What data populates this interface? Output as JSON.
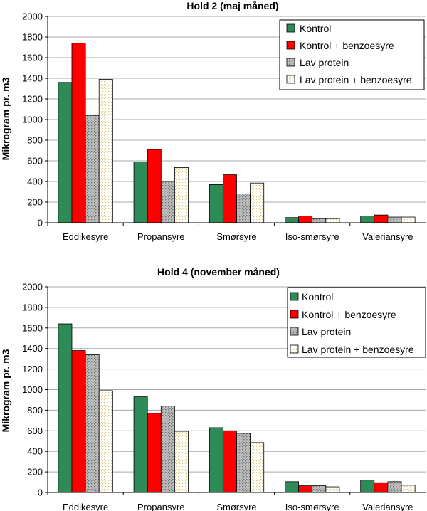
{
  "chart_data": [
    {
      "type": "bar",
      "title": "Hold 2 (maj måned)",
      "ylabel": "Mikrogram pr. m3",
      "xlabel": "",
      "ylim": [
        0,
        2000
      ],
      "yticks": [
        0,
        200,
        400,
        600,
        800,
        1000,
        1200,
        1400,
        1600,
        1800,
        2000
      ],
      "grid": "horizontal",
      "legend": "top-right",
      "categories": [
        "Eddikesyre",
        "Propansyre",
        "Smørsyre",
        "Iso-smørsyre",
        "Valeriansyre"
      ],
      "series": [
        {
          "name": "Kontrol",
          "color": "#2e8b57",
          "pattern": "solid",
          "values": [
            1360,
            590,
            370,
            50,
            65
          ]
        },
        {
          "name": "Kontrol + benzoesyre",
          "color": "#ff0000",
          "pattern": "solid",
          "values": [
            1740,
            710,
            465,
            65,
            75
          ]
        },
        {
          "name": "Lav protein",
          "color": "#c0c0c0",
          "pattern": "dots-dark",
          "values": [
            1040,
            400,
            280,
            40,
            55
          ]
        },
        {
          "name": "Lav protein + benzoesyre",
          "color": "#ffffff",
          "pattern": "dots-yellow",
          "values": [
            1390,
            535,
            385,
            40,
            55
          ]
        }
      ]
    },
    {
      "type": "bar",
      "title": "Hold 4 (november måned)",
      "ylabel": "Mikrogram pr. m3",
      "xlabel": "",
      "ylim": [
        0,
        2000
      ],
      "yticks": [
        0,
        200,
        400,
        600,
        800,
        1000,
        1200,
        1400,
        1600,
        1800,
        2000
      ],
      "grid": "horizontal",
      "legend": "top-right",
      "categories": [
        "Eddikesyre",
        "Propansyre",
        "Smørsyre",
        "Iso-smørsyre",
        "Valeriansyre"
      ],
      "series": [
        {
          "name": "Kontrol",
          "color": "#2e8b57",
          "pattern": "solid",
          "values": [
            1640,
            930,
            630,
            105,
            120
          ]
        },
        {
          "name": "Kontrol + benzoesyre",
          "color": "#ff0000",
          "pattern": "solid",
          "values": [
            1380,
            770,
            600,
            65,
            95
          ]
        },
        {
          "name": "Lav protein",
          "color": "#c0c0c0",
          "pattern": "dots-dark",
          "values": [
            1340,
            840,
            575,
            65,
            105
          ]
        },
        {
          "name": "Lav protein + benzoesyre",
          "color": "#ffffff",
          "pattern": "dots-yellow",
          "values": [
            990,
            595,
            485,
            55,
            70
          ]
        }
      ]
    }
  ]
}
